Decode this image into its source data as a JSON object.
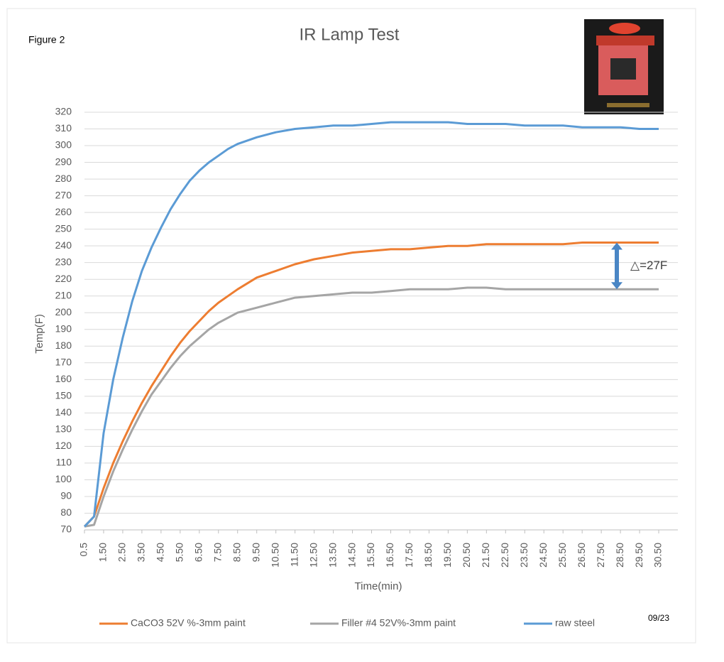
{
  "chart_data": {
    "type": "line",
    "title": "IR Lamp Test",
    "figure_label": "Figure 2",
    "date_note": "09/23",
    "annotation": "△=27F",
    "x_label": "Time(min)",
    "y_label": "Temp(F)",
    "x": [
      0.5,
      1,
      1.5,
      2,
      2.5,
      3,
      3.5,
      4,
      4.5,
      5,
      5.5,
      6,
      6.5,
      7,
      7.5,
      8,
      8.5,
      9.5,
      10.5,
      11.5,
      12.5,
      13.5,
      14.5,
      15.5,
      16.5,
      17.5,
      18.5,
      19.5,
      20.5,
      21.5,
      22.5,
      23.5,
      24.5,
      25.5,
      26.5,
      27.5,
      28.5,
      29.5,
      30.5
    ],
    "series": [
      {
        "name": "CaCO3 52V %-3mm paint",
        "color": "#ed7d31",
        "values": [
          72,
          78,
          95,
          110,
          123,
          135,
          146,
          156,
          165,
          174,
          182,
          189,
          195,
          201,
          206,
          210,
          214,
          221,
          225,
          229,
          232,
          234,
          236,
          237,
          238,
          238,
          239,
          240,
          240,
          241,
          241,
          241,
          241,
          241,
          242,
          242,
          242,
          242,
          242
        ]
      },
      {
        "name": "Filler #4 52V%-3mm paint",
        "color": "#a5a5a5",
        "values": [
          72,
          73,
          90,
          105,
          118,
          130,
          141,
          151,
          159,
          167,
          174,
          180,
          185,
          190,
          194,
          197,
          200,
          203,
          206,
          209,
          210,
          211,
          212,
          212,
          213,
          214,
          214,
          214,
          215,
          215,
          214,
          214,
          214,
          214,
          214,
          214,
          214,
          214,
          214
        ]
      },
      {
        "name": "raw steel",
        "color": "#5b9bd5",
        "values": [
          72,
          78,
          128,
          160,
          185,
          207,
          225,
          239,
          251,
          262,
          271,
          279,
          285,
          290,
          294,
          298,
          301,
          305,
          308,
          310,
          311,
          312,
          312,
          313,
          314,
          314,
          314,
          314,
          313,
          313,
          313,
          312,
          312,
          312,
          311,
          311,
          311,
          310,
          310
        ]
      }
    ],
    "xlim": [
      0.5,
      31.5
    ],
    "xticks": [
      0.5,
      {
        "value": 1.5,
        "label": "1.50"
      },
      {
        "value": 2.5,
        "label": "2.50"
      },
      {
        "value": 3.5,
        "label": "3.50"
      },
      {
        "value": 4.5,
        "label": "4.50"
      },
      {
        "value": 5.5,
        "label": "5.50"
      },
      {
        "value": 6.5,
        "label": "6.50"
      },
      {
        "value": 7.5,
        "label": "7.50"
      },
      {
        "value": 8.5,
        "label": "8.50"
      },
      {
        "value": 9.5,
        "label": "9.50"
      },
      {
        "value": 10.5,
        "label": "10.50"
      },
      {
        "value": 11.5,
        "label": "11.50"
      },
      {
        "value": 12.5,
        "label": "12.50"
      },
      {
        "value": 13.5,
        "label": "13.50"
      },
      {
        "value": 14.5,
        "label": "14.50"
      },
      {
        "value": 15.5,
        "label": "15.50"
      },
      {
        "value": 16.5,
        "label": "16.50"
      },
      {
        "value": 17.5,
        "label": "17.50"
      },
      {
        "value": 18.5,
        "label": "18.50"
      },
      {
        "value": 19.5,
        "label": "19.50"
      },
      {
        "value": 20.5,
        "label": "20.50"
      },
      {
        "value": 21.5,
        "label": "21.50"
      },
      {
        "value": 22.5,
        "label": "22.50"
      },
      {
        "value": 23.5,
        "label": "23.50"
      },
      {
        "value": 24.5,
        "label": "24.50"
      },
      {
        "value": 25.5,
        "label": "25.50"
      },
      {
        "value": 26.5,
        "label": "26.50"
      },
      {
        "value": 27.5,
        "label": "27.50"
      },
      {
        "value": 28.5,
        "label": "28.50"
      },
      {
        "value": 29.5,
        "label": "29.50"
      },
      {
        "value": 30.5,
        "label": "30.50"
      }
    ],
    "ylim": [
      70,
      320
    ],
    "yticks": [
      70,
      80,
      90,
      100,
      110,
      120,
      130,
      140,
      150,
      160,
      170,
      180,
      190,
      200,
      210,
      220,
      230,
      240,
      250,
      260,
      270,
      280,
      290,
      300,
      310,
      320
    ],
    "grid": true,
    "legend": "bottom"
  }
}
